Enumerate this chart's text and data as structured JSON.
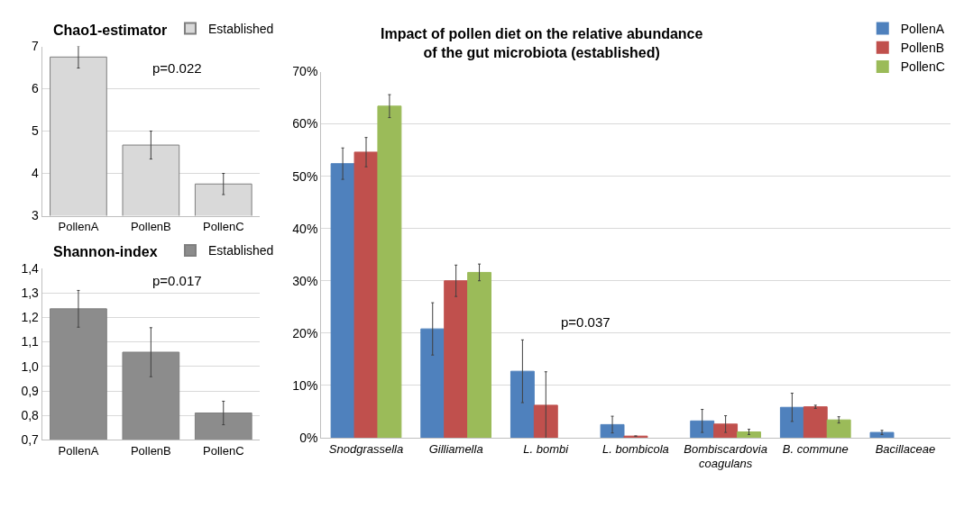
{
  "chart_data": [
    {
      "type": "bar",
      "title": "Chao1-estimator",
      "categories": [
        "PollenA",
        "PollenB",
        "PollenC"
      ],
      "series": [
        {
          "name": "Established",
          "color": "#d9d9d9",
          "values": [
            6.75,
            4.67,
            3.75
          ],
          "errors": [
            0.26,
            0.33,
            0.25
          ]
        }
      ],
      "ylim": [
        3,
        7
      ],
      "yticks": [
        3,
        4,
        5,
        6,
        7
      ],
      "grid": "y",
      "legend": "top right",
      "annotations": [
        "p=0.022"
      ]
    },
    {
      "type": "bar",
      "title": "Shannon-index",
      "categories": [
        "PollenA",
        "PollenB",
        "PollenC"
      ],
      "series": [
        {
          "name": "Established",
          "color": "#8c8c8c",
          "values": [
            1.235,
            1.058,
            0.81
          ],
          "errors": [
            0.075,
            0.1,
            0.048
          ]
        }
      ],
      "ylim": [
        0.7,
        1.4
      ],
      "yticks": [
        {
          "value": 0.7,
          "label": "0,7"
        },
        {
          "value": 0.8,
          "label": "0,8"
        },
        {
          "value": 0.9,
          "label": "0,9"
        },
        {
          "value": 1.0,
          "label": "1,0"
        },
        {
          "value": 1.1,
          "label": "1,1"
        },
        {
          "value": 1.2,
          "label": "1,2"
        },
        {
          "value": 1.3,
          "label": "1,3"
        },
        {
          "value": 1.4,
          "label": "1,4"
        }
      ],
      "grid": "y",
      "legend": "top right",
      "annotations": [
        "p=0.017"
      ]
    },
    {
      "type": "bar",
      "title": "Impact of pollen diet on the relative abundance\nof the gut microbiota (established)",
      "categories": [
        "Snodgrassella",
        "Gilliamella",
        "L. bombi",
        "L. bombicola",
        "Bombiscardovia coagulans",
        "B. commune",
        "Bacillaceae"
      ],
      "series": [
        {
          "name": "PollenA",
          "color": "#4f81bd",
          "values": [
            52.4,
            20.8,
            12.7,
            2.5,
            3.2,
            5.8,
            1.0
          ],
          "errors": [
            3.0,
            5.0,
            6.0,
            1.6,
            2.2,
            2.7,
            0.4
          ]
        },
        {
          "name": "PollenB",
          "color": "#c0504d",
          "values": [
            54.6,
            30.0,
            6.2,
            0.3,
            2.6,
            5.9,
            null
          ],
          "errors": [
            2.8,
            3.0,
            6.4,
            null,
            1.6,
            0.3,
            null
          ]
        },
        {
          "name": "PollenC",
          "color": "#9bbb59",
          "values": [
            63.4,
            31.6,
            null,
            null,
            1.1,
            3.4,
            null
          ],
          "errors": [
            2.2,
            1.6,
            null,
            null,
            0.5,
            0.6,
            null
          ]
        }
      ],
      "ylim": [
        0,
        70
      ],
      "yticks": [
        {
          "value": 0,
          "label": "0%"
        },
        {
          "value": 10,
          "label": "10%"
        },
        {
          "value": 20,
          "label": "20%"
        },
        {
          "value": 30,
          "label": "30%"
        },
        {
          "value": 40,
          "label": "40%"
        },
        {
          "value": 50,
          "label": "50%"
        },
        {
          "value": 60,
          "label": "60%"
        },
        {
          "value": 70,
          "label": "70%"
        }
      ],
      "grid": "y",
      "legend": "top right",
      "annotations": [
        "p=0.037"
      ]
    }
  ]
}
